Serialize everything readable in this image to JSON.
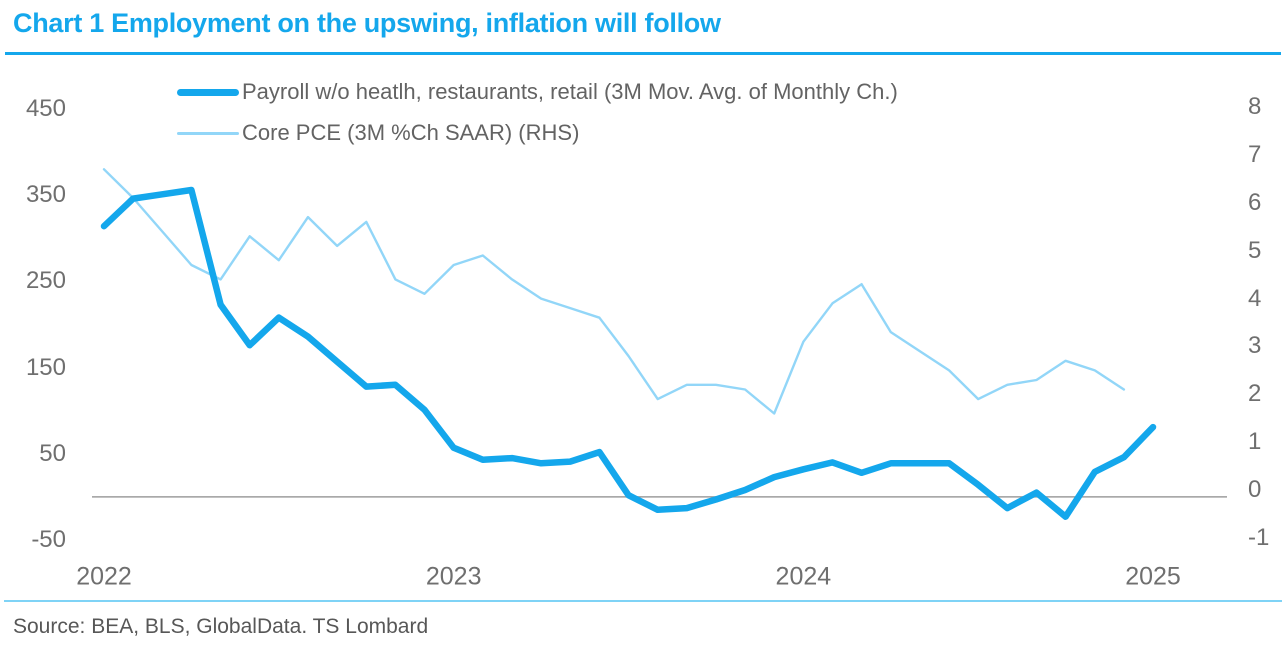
{
  "title": "Chart 1 Employment on the upswing, inflation will follow",
  "footer": {
    "source": "Source: BEA, BLS, GlobalData. TS Lombard"
  },
  "colors": {
    "accent": "#14A7EC",
    "payroll_line": "#14A7EC",
    "core_pce_line": "#92D6F8",
    "bottom_rule": "#7FD3F6",
    "zero_line": "#9D9D9D",
    "axis_text": "#6F6F6F",
    "legend_text": "#636363",
    "source_text": "#575757",
    "title_text": "#14A7EC"
  },
  "chart_data": {
    "type": "line",
    "title": "Chart 1 Employment on the upswing, inflation will follow",
    "x_unit": "month",
    "x_start": "2022-01",
    "x_tick_labels": [
      "2022",
      "2023",
      "2024",
      "2025"
    ],
    "x_ticks_every_n_points": 12,
    "grid": "off",
    "legend_position": "top-left-inside",
    "left_axis": {
      "ticks": [
        450,
        350,
        250,
        150,
        50,
        -50
      ],
      "range": [
        -50,
        450
      ]
    },
    "right_axis": {
      "ticks": [
        8,
        7,
        6,
        5,
        4,
        3,
        2,
        1,
        0,
        -1
      ],
      "range": [
        -1,
        8
      ]
    },
    "zero_baseline": {
      "axis": "left",
      "value": 0
    },
    "series": [
      {
        "name": "Payroll w/o heatlh, restaurants, retail (3M Mov. Avg. of Monthly Ch.)",
        "axis": "left",
        "color": "#14A7EC",
        "values": [
          314,
          346,
          351,
          356,
          223,
          176,
          208,
          186,
          157,
          128,
          130,
          101,
          57,
          43,
          45,
          39,
          41,
          52,
          2,
          -15,
          -13,
          -3,
          8,
          23,
          32,
          40,
          28,
          39,
          39,
          39,
          14,
          -13,
          5,
          -23,
          29,
          46,
          81
        ]
      },
      {
        "name": "Core PCE (3M %Ch SAAR) (RHS)",
        "axis": "right",
        "color": "#92D6F8",
        "values": [
          6.7,
          6.1,
          5.4,
          4.7,
          4.4,
          5.3,
          4.8,
          5.7,
          5.1,
          5.6,
          4.4,
          4.1,
          4.7,
          4.9,
          4.4,
          4.0,
          3.8,
          3.6,
          2.8,
          1.9,
          2.2,
          2.2,
          2.1,
          1.6,
          3.1,
          3.9,
          4.3,
          3.3,
          2.9,
          2.5,
          1.9,
          2.2,
          2.3,
          2.7,
          2.5,
          2.1
        ]
      }
    ]
  }
}
